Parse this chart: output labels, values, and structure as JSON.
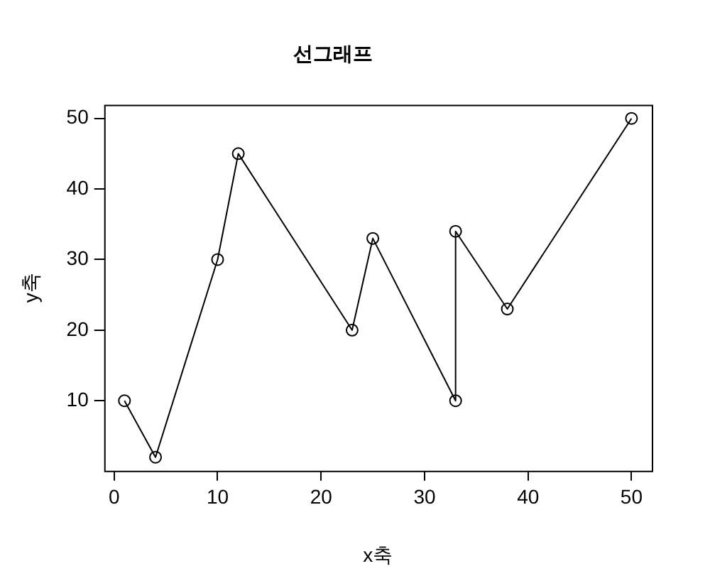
{
  "chart_data": {
    "type": "line",
    "title": "선그래프",
    "xlabel": "x축",
    "ylabel": "y축",
    "x": [
      1,
      4,
      10,
      12,
      23,
      25,
      33,
      33,
      38,
      50
    ],
    "series": [
      {
        "color": "#000000",
        "values": [
          10,
          2,
          30,
          45,
          20,
          33,
          10,
          34,
          23,
          50
        ]
      }
    ],
    "xlim": [
      -0.96,
      51.96
    ],
    "ylim": [
      0.08,
      51.92
    ],
    "xticks": [
      0,
      10,
      20,
      30,
      40,
      50
    ],
    "yticks": [
      10,
      20,
      30,
      40,
      50
    ],
    "marker": "circle",
    "line_style": "solid",
    "grid": false,
    "legend": false
  }
}
